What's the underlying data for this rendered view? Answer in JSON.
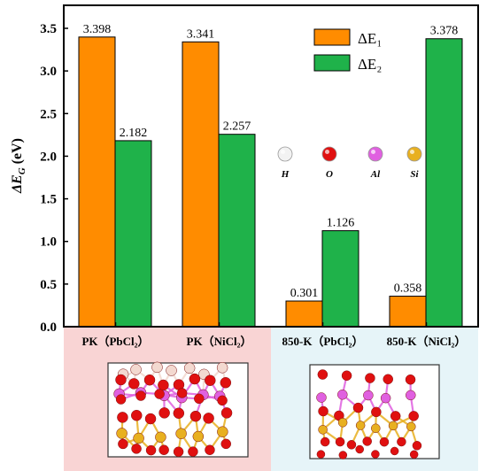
{
  "chart_data": {
    "type": "bar",
    "ylabel": "ΔE_G (eV)",
    "ylim": [
      0,
      3.5
    ],
    "yticks": [
      "0.0",
      "0.5",
      "1.0",
      "1.5",
      "2.0",
      "2.5",
      "3.0",
      "3.5"
    ],
    "categories": [
      "PK（PbCl₂）",
      "PK（NiCl₂）",
      "850-K（PbCl₂）",
      "850-K（NiCl₂）"
    ],
    "series": [
      {
        "name": "ΔE₁",
        "color": "#ff8c00",
        "values": [
          3.398,
          3.341,
          0.301,
          0.358
        ],
        "labels": [
          "3.398",
          "3.341",
          "0.301",
          "0.358"
        ]
      },
      {
        "name": "ΔE₂",
        "color": "#1fb24a",
        "values": [
          2.182,
          2.257,
          1.126,
          3.378
        ],
        "labels": [
          "2.182",
          "2.257",
          "1.126",
          "3.378"
        ]
      }
    ],
    "legend_position": "top-right"
  },
  "atom_legend": [
    {
      "label": "H",
      "color": "#f2f2f2"
    },
    {
      "label": "O",
      "color": "#e01010"
    },
    {
      "label": "Al",
      "color": "#e060e0"
    },
    {
      "label": "Si",
      "color": "#e8b020"
    }
  ],
  "panel_colors": {
    "left": "#f9d4d4",
    "right": "#e6f4f8"
  }
}
